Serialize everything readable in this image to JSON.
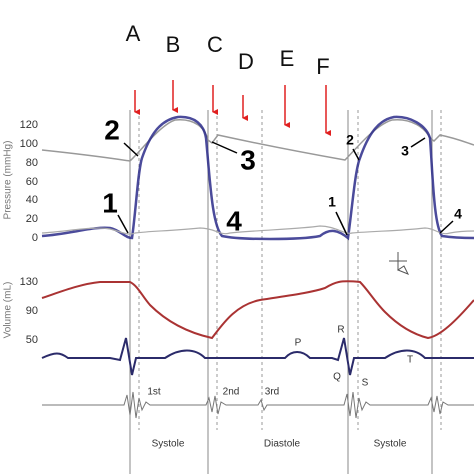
{
  "phase_letters": [
    "A",
    "B",
    "C",
    "D",
    "E",
    "F"
  ],
  "large_markers": [
    "1",
    "2",
    "3",
    "4"
  ],
  "small_markers": [
    "1",
    "2",
    "3",
    "4"
  ],
  "pressure_axis": {
    "label": "Pressure (mmHg)",
    "ticks": [
      "120",
      "100",
      "80",
      "60",
      "40",
      "20",
      "0"
    ]
  },
  "volume_axis": {
    "label": "Volume (mL)",
    "ticks": [
      "130",
      "90",
      "50"
    ]
  },
  "ecg_labels": [
    "P",
    "R",
    "Q",
    "S",
    "T"
  ],
  "heart_sounds": [
    "1st",
    "2nd",
    "3rd"
  ],
  "phases": [
    "Systole",
    "Diastole",
    "Systole"
  ]
}
